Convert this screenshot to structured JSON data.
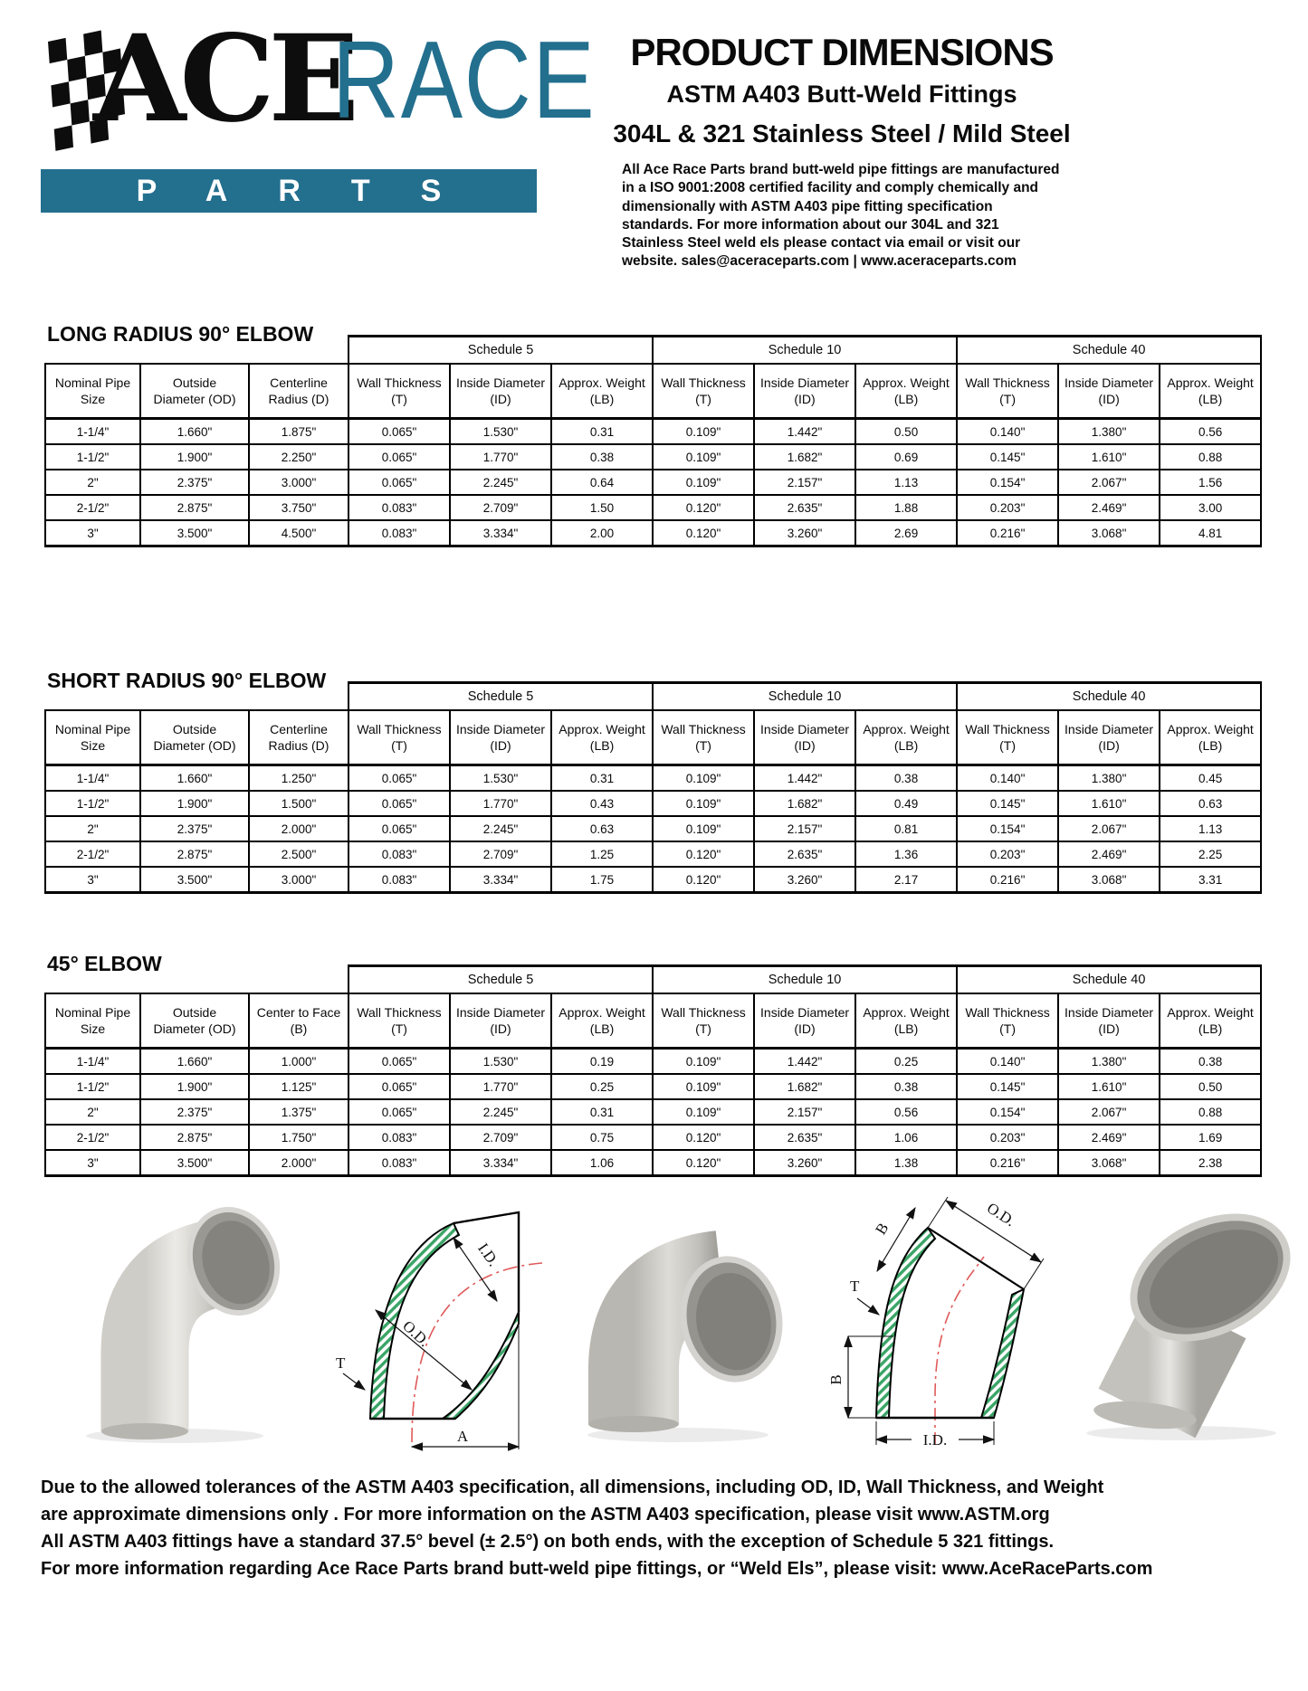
{
  "logo": {
    "ace": "ACE",
    "race": "RACE",
    "parts": "PARTS",
    "accent_color": "#236f8e"
  },
  "header": {
    "title": "PRODUCT DIMENSIONS",
    "subtitle1": "ASTM A403 Butt-Weld Fittings",
    "subtitle2": "304L & 321 Stainless Steel / Mild Steel",
    "paragraph": "All Ace Race Parts brand butt-weld pipe fittings are manufactured in a ISO 9001:2008 certified facility and comply chemically and dimensionally with ASTM A403 pipe fitting specification standards. For more information about our 304L and 321 Stainless Steel weld els please contact via email or visit our website. sales@aceraceparts.com | www.aceraceparts.com"
  },
  "tables": [
    {
      "title": "LONG RADIUS 90° ELBOW",
      "schedules": [
        "Schedule 5",
        "Schedule 10",
        "Schedule 40"
      ],
      "base_headers": [
        [
          "Nominal Pipe",
          "Size"
        ],
        [
          "Outside",
          "Diameter (OD)"
        ],
        [
          "Centerline",
          "Radius (D)"
        ]
      ],
      "schedule_headers": [
        [
          "Wall Thickness",
          "(T)"
        ],
        [
          "Inside Diameter",
          "(ID)"
        ],
        [
          "Approx. Weight",
          "(LB)"
        ]
      ],
      "rows": [
        [
          "1-1/4\"",
          "1.660\"",
          "1.875\"",
          "0.065\"",
          "1.530\"",
          "0.31",
          "0.109\"",
          "1.442\"",
          "0.50",
          "0.140\"",
          "1.380\"",
          "0.56"
        ],
        [
          "1-1/2\"",
          "1.900\"",
          "2.250\"",
          "0.065\"",
          "1.770\"",
          "0.38",
          "0.109\"",
          "1.682\"",
          "0.69",
          "0.145\"",
          "1.610\"",
          "0.88"
        ],
        [
          "2\"",
          "2.375\"",
          "3.000\"",
          "0.065\"",
          "2.245\"",
          "0.64",
          "0.109\"",
          "2.157\"",
          "1.13",
          "0.154\"",
          "2.067\"",
          "1.56"
        ],
        [
          "2-1/2\"",
          "2.875\"",
          "3.750\"",
          "0.083\"",
          "2.709\"",
          "1.50",
          "0.120\"",
          "2.635\"",
          "1.88",
          "0.203\"",
          "2.469\"",
          "3.00"
        ],
        [
          "3\"",
          "3.500\"",
          "4.500\"",
          "0.083\"",
          "3.334\"",
          "2.00",
          "0.120\"",
          "3.260\"",
          "2.69",
          "0.216\"",
          "3.068\"",
          "4.81"
        ]
      ]
    },
    {
      "title": "SHORT RADIUS 90° ELBOW",
      "schedules": [
        "Schedule 5",
        "Schedule 10",
        "Schedule 40"
      ],
      "base_headers": [
        [
          "Nominal Pipe",
          "Size"
        ],
        [
          "Outside",
          "Diameter (OD)"
        ],
        [
          "Centerline",
          "Radius (D)"
        ]
      ],
      "schedule_headers": [
        [
          "Wall Thickness",
          "(T)"
        ],
        [
          "Inside Diameter",
          "(ID)"
        ],
        [
          "Approx. Weight",
          "(LB)"
        ]
      ],
      "rows": [
        [
          "1-1/4\"",
          "1.660\"",
          "1.250\"",
          "0.065\"",
          "1.530\"",
          "0.31",
          "0.109\"",
          "1.442\"",
          "0.38",
          "0.140\"",
          "1.380\"",
          "0.45"
        ],
        [
          "1-1/2\"",
          "1.900\"",
          "1.500\"",
          "0.065\"",
          "1.770\"",
          "0.43",
          "0.109\"",
          "1.682\"",
          "0.49",
          "0.145\"",
          "1.610\"",
          "0.63"
        ],
        [
          "2\"",
          "2.375\"",
          "2.000\"",
          "0.065\"",
          "2.245\"",
          "0.63",
          "0.109\"",
          "2.157\"",
          "0.81",
          "0.154\"",
          "2.067\"",
          "1.13"
        ],
        [
          "2-1/2\"",
          "2.875\"",
          "2.500\"",
          "0.083\"",
          "2.709\"",
          "1.25",
          "0.120\"",
          "2.635\"",
          "1.36",
          "0.203\"",
          "2.469\"",
          "2.25"
        ],
        [
          "3\"",
          "3.500\"",
          "3.000\"",
          "0.083\"",
          "3.334\"",
          "1.75",
          "0.120\"",
          "3.260\"",
          "2.17",
          "0.216\"",
          "3.068\"",
          "3.31"
        ]
      ]
    },
    {
      "title": "45° ELBOW",
      "schedules": [
        "Schedule 5",
        "Schedule 10",
        "Schedule 40"
      ],
      "base_headers": [
        [
          "Nominal Pipe",
          "Size"
        ],
        [
          "Outside",
          "Diameter (OD)"
        ],
        [
          "Center to Face",
          "(B)"
        ]
      ],
      "schedule_headers": [
        [
          "Wall Thickness",
          "(T)"
        ],
        [
          "Inside Diameter",
          "(ID)"
        ],
        [
          "Approx. Weight",
          "(LB)"
        ]
      ],
      "rows": [
        [
          "1-1/4\"",
          "1.660\"",
          "1.000\"",
          "0.065\"",
          "1.530\"",
          "0.19",
          "0.109\"",
          "1.442\"",
          "0.25",
          "0.140\"",
          "1.380\"",
          "0.38"
        ],
        [
          "1-1/2\"",
          "1.900\"",
          "1.125\"",
          "0.065\"",
          "1.770\"",
          "0.25",
          "0.109\"",
          "1.682\"",
          "0.38",
          "0.145\"",
          "1.610\"",
          "0.50"
        ],
        [
          "2\"",
          "2.375\"",
          "1.375\"",
          "0.065\"",
          "2.245\"",
          "0.31",
          "0.109\"",
          "2.157\"",
          "0.56",
          "0.154\"",
          "2.067\"",
          "0.88"
        ],
        [
          "2-1/2\"",
          "2.875\"",
          "1.750\"",
          "0.083\"",
          "2.709\"",
          "0.75",
          "0.120\"",
          "2.635\"",
          "1.06",
          "0.203\"",
          "2.469\"",
          "1.69"
        ],
        [
          "3\"",
          "3.500\"",
          "2.000\"",
          "0.083\"",
          "3.334\"",
          "1.06",
          "0.120\"",
          "3.260\"",
          "1.38",
          "0.216\"",
          "3.068\"",
          "2.38"
        ]
      ]
    }
  ],
  "figures": [
    {
      "name": "long-radius-90-elbow-photo",
      "type": "photo"
    },
    {
      "name": "90-elbow-section-diagram",
      "type": "diagram",
      "labels": {
        "id": "I.D.",
        "od": "O.D.",
        "t": "T",
        "a": "A"
      },
      "hatch_color": "#3aa566",
      "centerline_color": "#e05a5a"
    },
    {
      "name": "short-radius-90-elbow-photo",
      "type": "photo"
    },
    {
      "name": "45-elbow-section-diagram",
      "type": "diagram",
      "labels": {
        "b_top": "B",
        "od": "O.D.",
        "t": "T",
        "b_left": "B",
        "id": "I.D."
      },
      "hatch_color": "#3aa566",
      "centerline_color": "#e05a5a"
    },
    {
      "name": "45-elbow-photo",
      "type": "photo"
    }
  ],
  "footer": {
    "lines": [
      "Due to the allowed tolerances of the ASTM A403 specification, all dimensions, including OD, ID, Wall Thickness, and Weight",
      "are approximate dimensions only . For more information on the ASTM A403 specification, please visit www.ASTM.org",
      "All ASTM A403 fittings have a standard 37.5° bevel (± 2.5°) on both ends, with the exception of Schedule 5 321 fittings.",
      "For more information regarding Ace Race Parts brand butt-weld pipe fittings, or “Weld Els”, please visit: www.AceRaceParts.com"
    ]
  }
}
